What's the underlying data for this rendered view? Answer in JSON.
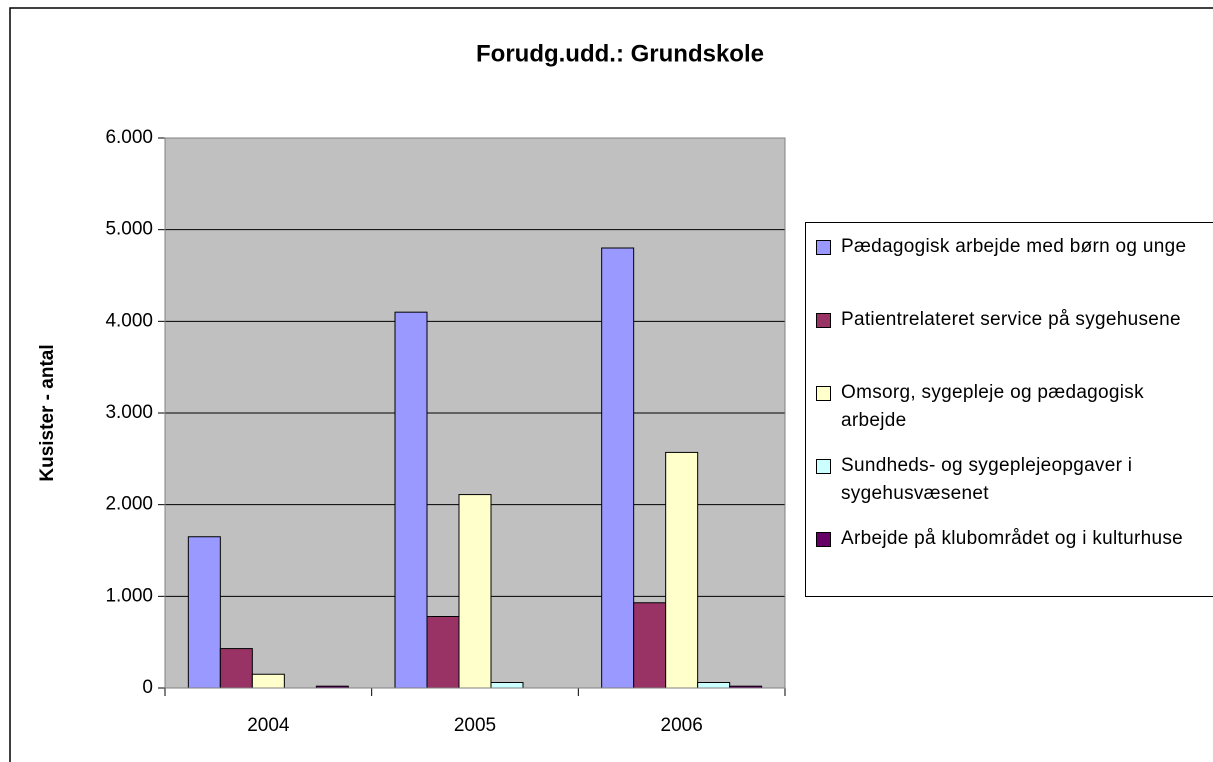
{
  "chart_data": {
    "type": "bar",
    "title": "Forudg.udd.: Grundskole",
    "y_label": "Kusister - antal",
    "categories": [
      "2004",
      "2005",
      "2006"
    ],
    "series": [
      {
        "name": "Pædagogisk arbejde med børn og unge",
        "color": "#9999ff",
        "values": [
          1650,
          4100,
          4800
        ]
      },
      {
        "name": "Patientrelateret service på sygehusene",
        "color": "#993366",
        "values": [
          430,
          780,
          930
        ]
      },
      {
        "name": "Omsorg, sygepleje og pædagogisk arbejde",
        "color": "#ffffcc",
        "values": [
          150,
          2110,
          2570
        ]
      },
      {
        "name": "Sundheds- og sygeplejeopgaver i sygehusvæsenet",
        "color": "#ccffff",
        "values": [
          0,
          60,
          60
        ]
      },
      {
        "name": "Arbejde på klubområdet og i kulturhuse",
        "color": "#660066",
        "values": [
          20,
          0,
          20
        ]
      }
    ],
    "ylim": [
      0,
      6000
    ],
    "yticks": [
      0,
      {
        "value": 1000,
        "label": "1.000"
      },
      {
        "value": 2000,
        "label": "2.000"
      },
      {
        "value": 3000,
        "label": "3.000"
      },
      {
        "value": 4000,
        "label": "4.000"
      },
      {
        "value": 5000,
        "label": "5.000"
      },
      {
        "value": 6000,
        "label": "6.000"
      }
    ],
    "grid": true,
    "plot_background": "#c0c0c0",
    "legend": "right"
  }
}
